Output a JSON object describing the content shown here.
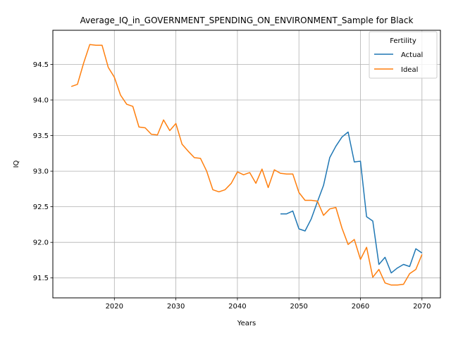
{
  "chart_data": {
    "type": "line",
    "title": "Average_IQ_in_GOVERNMENT_SPENDING_ON_ENVIRONMENT_Sample for Black",
    "xlabel": "Years",
    "ylabel": "IQ",
    "xlim": [
      2010,
      2073
    ],
    "ylim": [
      91.22,
      94.98
    ],
    "xticks": [
      2020,
      2030,
      2040,
      2050,
      2060,
      2070
    ],
    "yticks": [
      91.5,
      92.0,
      92.5,
      93.0,
      93.5,
      94.0,
      94.5
    ],
    "grid": true,
    "legend": {
      "title": "Fertility",
      "placement": "top-right"
    },
    "series": [
      {
        "name": "Actual",
        "color": "#1f77b4",
        "x": [
          2047,
          2048,
          2049,
          2050,
          2051,
          2052,
          2053,
          2054,
          2055,
          2056,
          2057,
          2058,
          2059,
          2060,
          2061,
          2062,
          2063,
          2064,
          2065,
          2066,
          2067,
          2068,
          2069,
          2070
        ],
        "y": [
          92.4,
          92.4,
          92.44,
          92.19,
          92.16,
          92.33,
          92.57,
          92.8,
          93.19,
          93.35,
          93.48,
          93.55,
          93.13,
          93.14,
          92.36,
          92.3,
          91.69,
          91.79,
          91.57,
          91.64,
          91.69,
          91.66,
          91.91,
          91.85
        ]
      },
      {
        "name": "Ideal",
        "color": "#ff7f0e",
        "x": [
          2013,
          2014,
          2015,
          2016,
          2017,
          2018,
          2019,
          2020,
          2021,
          2022,
          2023,
          2024,
          2025,
          2026,
          2027,
          2028,
          2029,
          2030,
          2031,
          2032,
          2033,
          2034,
          2035,
          2036,
          2037,
          2038,
          2039,
          2040,
          2041,
          2042,
          2043,
          2044,
          2045,
          2046,
          2047,
          2048,
          2049,
          2050,
          2051,
          2052,
          2053,
          2054,
          2055,
          2056,
          2057,
          2058,
          2059,
          2060,
          2061,
          2062,
          2063,
          2064,
          2065,
          2066,
          2067,
          2068,
          2069,
          2070
        ],
        "y": [
          94.19,
          94.22,
          94.52,
          94.78,
          94.77,
          94.77,
          94.46,
          94.32,
          94.07,
          93.94,
          93.91,
          93.62,
          93.61,
          93.52,
          93.51,
          93.72,
          93.57,
          93.67,
          93.38,
          93.28,
          93.19,
          93.18,
          93.0,
          92.74,
          92.71,
          92.74,
          92.83,
          92.99,
          92.95,
          92.98,
          92.83,
          93.03,
          92.77,
          93.02,
          92.97,
          92.96,
          92.96,
          92.7,
          92.59,
          92.59,
          92.58,
          92.38,
          92.47,
          92.49,
          92.2,
          91.97,
          92.04,
          91.76,
          91.93,
          91.51,
          91.62,
          91.43,
          91.4,
          91.4,
          91.41,
          91.56,
          91.62,
          91.83
        ]
      }
    ]
  }
}
